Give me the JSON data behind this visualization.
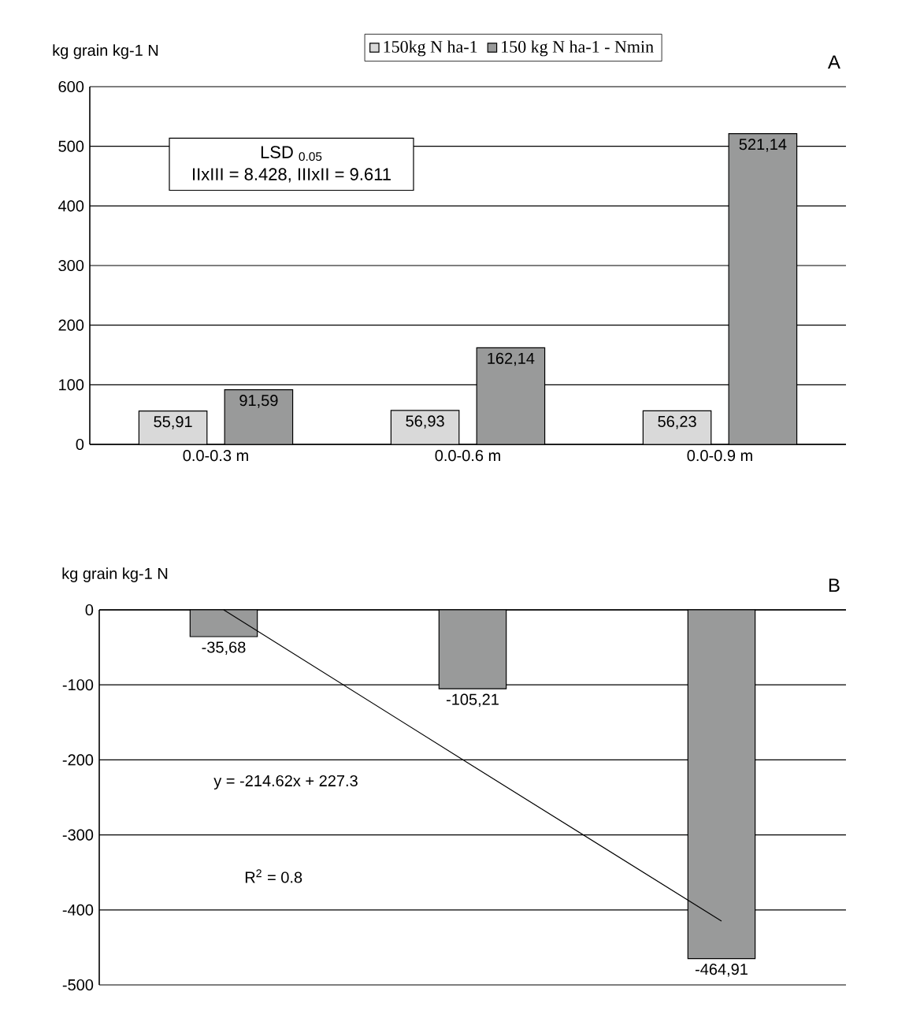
{
  "chart_data": [
    {
      "type": "bar",
      "ylabel": "kg grain kg-1 N",
      "categories": [
        "0.0-0.3 m",
        "0.0-0.6 m",
        "0.0-0.9 m"
      ],
      "series": [
        {
          "name": "150kg N ha-1",
          "color": "#d9d9d9",
          "values": [
            55.91,
            56.93,
            56.23
          ],
          "value_labels": [
            "55,91",
            "56,93",
            "56,23"
          ]
        },
        {
          "name": "150 kg  N ha-1 - Nmin",
          "color": "#999a9a",
          "values": [
            91.59,
            162.14,
            521.14
          ],
          "value_labels": [
            "91,59",
            "162,14",
            "521,14"
          ]
        }
      ],
      "ylim": [
        0,
        600
      ],
      "yticks": [
        0,
        100,
        200,
        300,
        400,
        500,
        600
      ],
      "grid": "y",
      "legend": "top",
      "annotations": [
        "LSD $_{0.05}$",
        "IIxIII = 8.428,  IIIxII = 9.611",
        "A"
      ]
    },
    {
      "type": "bar",
      "ylabel": "kg grain kg-1 N",
      "categories": [
        null,
        null,
        null
      ],
      "series": [
        {
          "color": "#999a9a",
          "values": [
            -35.68,
            -105.21,
            -464.91
          ],
          "value_labels": [
            "-35,68",
            "-105,21",
            "-464,91"
          ]
        },
        {
          "type": "line",
          "color": "#000000",
          "values": [
            0,
            -208,
            -415
          ]
        }
      ],
      "ylim": [
        -500,
        0
      ],
      "yticks": [
        -500,
        -400,
        -300,
        -200,
        -100,
        0
      ],
      "grid": "y",
      "legend": false,
      "annotations": [
        "y = -214.62x + 227.3",
        "R$^{2}$ = 0.8",
        "B"
      ]
    }
  ]
}
